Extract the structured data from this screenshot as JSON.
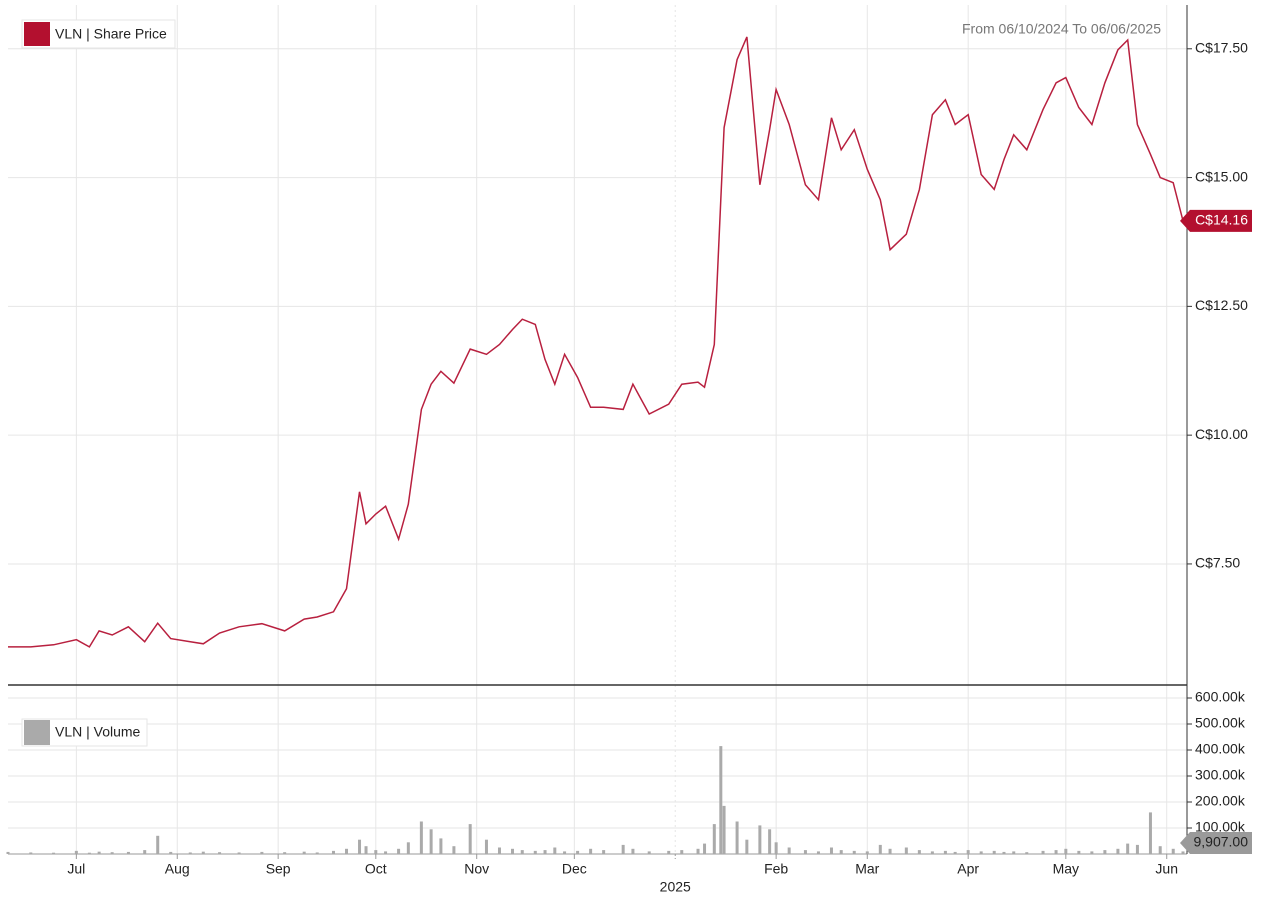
{
  "chart_data": [
    {
      "type": "line",
      "legend": "VLN | Share Price",
      "range_text": "From 06/10/2024 To 06/06/2025",
      "color": "#b8203f",
      "grid": true,
      "x": [
        "2024-06-10",
        "2024-06-17",
        "2024-06-24",
        "2024-07-01",
        "2024-07-05",
        "2024-07-08",
        "2024-07-12",
        "2024-07-17",
        "2024-07-22",
        "2024-07-26",
        "2024-07-30",
        "2024-08-05",
        "2024-08-09",
        "2024-08-14",
        "2024-08-20",
        "2024-08-27",
        "2024-09-03",
        "2024-09-09",
        "2024-09-13",
        "2024-09-18",
        "2024-09-22",
        "2024-09-26",
        "2024-09-28",
        "2024-10-01",
        "2024-10-04",
        "2024-10-08",
        "2024-10-11",
        "2024-10-15",
        "2024-10-18",
        "2024-10-21",
        "2024-10-25",
        "2024-10-30",
        "2024-11-04",
        "2024-11-08",
        "2024-11-12",
        "2024-11-15",
        "2024-11-19",
        "2024-11-22",
        "2024-11-25",
        "2024-11-28",
        "2024-12-02",
        "2024-12-06",
        "2024-12-10",
        "2024-12-16",
        "2024-12-19",
        "2024-12-24",
        "2024-12-30",
        "2025-01-03",
        "2025-01-08",
        "2025-01-10",
        "2025-01-13",
        "2025-01-15",
        "2025-01-16",
        "2025-01-20",
        "2025-01-23",
        "2025-01-27",
        "2025-01-30",
        "2025-02-01",
        "2025-02-05",
        "2025-02-10",
        "2025-02-14",
        "2025-02-18",
        "2025-02-21",
        "2025-02-25",
        "2025-03-01",
        "2025-03-05",
        "2025-03-08",
        "2025-03-13",
        "2025-03-17",
        "2025-03-21",
        "2025-03-25",
        "2025-03-28",
        "2025-04-01",
        "2025-04-05",
        "2025-04-09",
        "2025-04-12",
        "2025-04-15",
        "2025-04-19",
        "2025-04-24",
        "2025-04-28",
        "2025-05-01",
        "2025-05-05",
        "2025-05-09",
        "2025-05-13",
        "2025-05-17",
        "2025-05-20",
        "2025-05-23",
        "2025-05-27",
        "2025-05-30",
        "2025-06-03",
        "2025-06-06"
      ],
      "values": [
        5.89,
        5.89,
        5.93,
        6.03,
        5.89,
        6.2,
        6.12,
        6.28,
        5.99,
        6.35,
        6.05,
        5.99,
        5.95,
        6.16,
        6.28,
        6.34,
        6.2,
        6.43,
        6.47,
        6.57,
        7.02,
        8.9,
        8.28,
        8.47,
        8.62,
        7.98,
        8.66,
        10.5,
        10.99,
        11.24,
        11.01,
        11.67,
        11.57,
        11.76,
        12.05,
        12.25,
        12.15,
        11.47,
        10.99,
        11.57,
        11.12,
        10.54,
        10.54,
        10.5,
        10.99,
        10.41,
        10.6,
        10.99,
        11.03,
        10.93,
        11.76,
        14.57,
        15.97,
        17.29,
        17.73,
        14.86,
        15.93,
        16.71,
        16.03,
        14.86,
        14.57,
        16.16,
        15.54,
        15.93,
        15.16,
        14.57,
        13.6,
        13.9,
        14.77,
        16.22,
        16.51,
        16.03,
        16.22,
        15.06,
        14.77,
        15.35,
        15.83,
        15.54,
        16.32,
        16.84,
        16.94,
        16.36,
        16.03,
        16.84,
        17.48,
        17.67,
        16.03,
        15.45,
        15.0,
        14.9,
        14.16
      ],
      "xlim": [
        "2024-06-10",
        "2025-06-06"
      ],
      "ylim": [
        5.15,
        18.35
      ],
      "yticks": [
        {
          "value": 7.5,
          "label": "C$7.50"
        },
        {
          "value": 10,
          "label": "C$10.00"
        },
        {
          "value": 12.5,
          "label": "C$12.50"
        },
        {
          "value": 15,
          "label": "C$15.00"
        },
        {
          "value": 17.5,
          "label": "C$17.50"
        }
      ],
      "last_label": {
        "value": 14.16,
        "label": "C$14.16"
      }
    },
    {
      "type": "bar",
      "legend": "VLN | Volume",
      "color": "#aaaaaa",
      "grid": true,
      "x": [
        "2024-06-10",
        "2024-06-17",
        "2024-06-24",
        "2024-07-01",
        "2024-07-05",
        "2024-07-08",
        "2024-07-12",
        "2024-07-17",
        "2024-07-22",
        "2024-07-26",
        "2024-07-30",
        "2024-08-05",
        "2024-08-09",
        "2024-08-14",
        "2024-08-20",
        "2024-08-27",
        "2024-09-03",
        "2024-09-09",
        "2024-09-13",
        "2024-09-18",
        "2024-09-22",
        "2024-09-26",
        "2024-09-28",
        "2024-10-01",
        "2024-10-04",
        "2024-10-08",
        "2024-10-11",
        "2024-10-15",
        "2024-10-18",
        "2024-10-21",
        "2024-10-25",
        "2024-10-30",
        "2024-11-04",
        "2024-11-08",
        "2024-11-12",
        "2024-11-15",
        "2024-11-19",
        "2024-11-22",
        "2024-11-25",
        "2024-11-28",
        "2024-12-02",
        "2024-12-06",
        "2024-12-10",
        "2024-12-16",
        "2024-12-19",
        "2024-12-24",
        "2024-12-30",
        "2025-01-03",
        "2025-01-08",
        "2025-01-10",
        "2025-01-13",
        "2025-01-15",
        "2025-01-16",
        "2025-01-20",
        "2025-01-23",
        "2025-01-27",
        "2025-01-30",
        "2025-02-01",
        "2025-02-05",
        "2025-02-10",
        "2025-02-14",
        "2025-02-18",
        "2025-02-21",
        "2025-02-25",
        "2025-03-01",
        "2025-03-05",
        "2025-03-08",
        "2025-03-13",
        "2025-03-17",
        "2025-03-21",
        "2025-03-25",
        "2025-03-28",
        "2025-04-01",
        "2025-04-05",
        "2025-04-09",
        "2025-04-12",
        "2025-04-15",
        "2025-04-19",
        "2025-04-24",
        "2025-04-28",
        "2025-05-01",
        "2025-05-05",
        "2025-05-09",
        "2025-05-13",
        "2025-05-17",
        "2025-05-20",
        "2025-05-23",
        "2025-05-27",
        "2025-05-30",
        "2025-06-03",
        "2025-06-06"
      ],
      "values": [
        8000,
        6000,
        5000,
        12000,
        5000,
        9000,
        7000,
        8000,
        15000,
        70000,
        8000,
        6000,
        9000,
        7000,
        6000,
        8000,
        7000,
        9000,
        6000,
        12000,
        20000,
        55000,
        30000,
        15000,
        10000,
        20000,
        45000,
        125000,
        95000,
        60000,
        30000,
        115000,
        55000,
        25000,
        20000,
        15000,
        12000,
        15000,
        25000,
        10000,
        12000,
        20000,
        15000,
        35000,
        20000,
        10000,
        12000,
        15000,
        20000,
        40000,
        115000,
        415000,
        185000,
        125000,
        55000,
        110000,
        95000,
        45000,
        25000,
        15000,
        10000,
        25000,
        15000,
        12000,
        10000,
        35000,
        20000,
        25000,
        15000,
        10000,
        12000,
        8000,
        15000,
        10000,
        12000,
        8000,
        10000,
        7000,
        12000,
        15000,
        20000,
        12000,
        10000,
        15000,
        20000,
        40000,
        35000,
        160000,
        30000,
        20000,
        9907
      ],
      "xlim": [
        "2024-06-10",
        "2025-06-06"
      ],
      "ylim": [
        0,
        650000
      ],
      "yticks": [
        {
          "value": 100000,
          "label": "100.00k"
        },
        {
          "value": 200000,
          "label": "200.00k"
        },
        {
          "value": 300000,
          "label": "300.00k"
        },
        {
          "value": 400000,
          "label": "400.00k"
        },
        {
          "value": 500000,
          "label": "500.00k"
        },
        {
          "value": 600000,
          "label": "600.00k"
        }
      ],
      "xticks": [
        {
          "value": "2024-07-01",
          "label": "Jul"
        },
        {
          "value": "2024-08-01",
          "label": "Aug"
        },
        {
          "value": "2024-09-01",
          "label": "Sep"
        },
        {
          "value": "2024-10-01",
          "label": "Oct"
        },
        {
          "value": "2024-11-01",
          "label": "Nov"
        },
        {
          "value": "2024-12-01",
          "label": "Dec"
        },
        {
          "value": "2025-01-01",
          "label": "2025"
        },
        {
          "value": "2025-02-01",
          "label": "Feb"
        },
        {
          "value": "2025-03-01",
          "label": "Mar"
        },
        {
          "value": "2025-04-01",
          "label": "Apr"
        },
        {
          "value": "2025-05-01",
          "label": "May"
        },
        {
          "value": "2025-06-01",
          "label": "Jun"
        }
      ],
      "last_label": {
        "value": 9907,
        "label": "9,907.00"
      }
    }
  ]
}
